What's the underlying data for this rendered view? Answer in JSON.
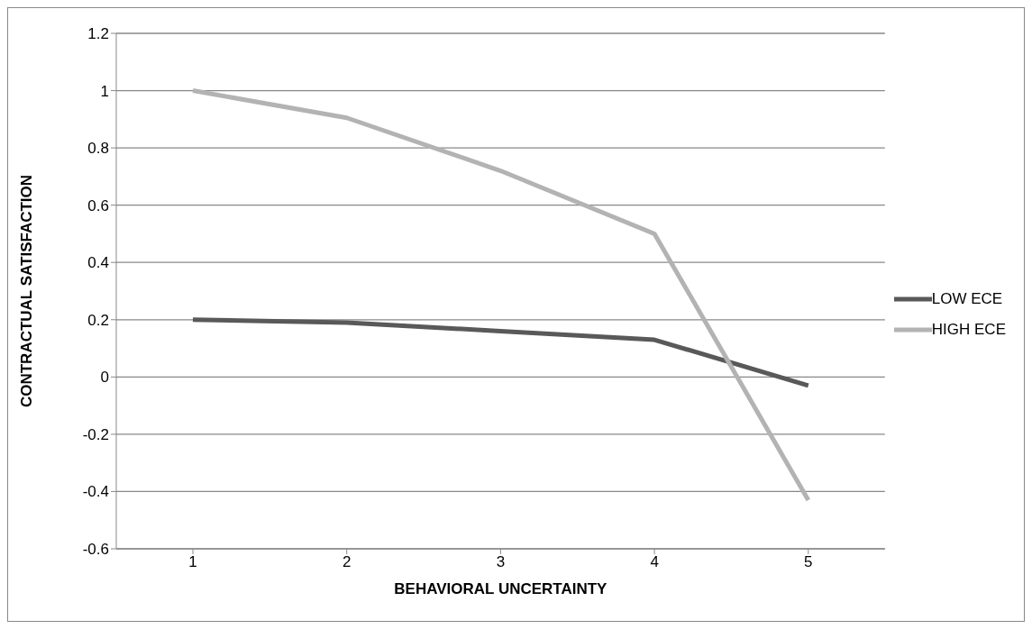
{
  "chart_data": {
    "type": "line",
    "xlabel": "BEHAVIORAL UNCERTAINTY",
    "ylabel": "CONTRACTUAL SATISFACTION",
    "categories": [
      "1",
      "2",
      "3",
      "4",
      "5"
    ],
    "series": [
      {
        "name": "LOW ECE",
        "color": "#595959",
        "values": [
          0.2,
          0.19,
          0.16,
          0.13,
          -0.03
        ]
      },
      {
        "name": "HIGH ECE",
        "color": "#b3b3b3",
        "values": [
          1.0,
          0.905,
          0.72,
          0.5,
          -0.43
        ]
      }
    ],
    "ylim": [
      -0.6,
      1.2
    ],
    "yticks": [
      {
        "value": -0.6,
        "label": "-0.6"
      },
      {
        "value": -0.4,
        "label": "-0.4"
      },
      {
        "value": -0.2,
        "label": "-0.2"
      },
      {
        "value": 0,
        "label": "0"
      },
      {
        "value": 0.2,
        "label": "0.2"
      },
      {
        "value": 0.4,
        "label": "0.4"
      },
      {
        "value": 0.6,
        "label": "0.6"
      },
      {
        "value": 0.8,
        "label": "0.8"
      },
      {
        "value": 1,
        "label": "1"
      },
      {
        "value": 1.2,
        "label": "1.2"
      }
    ],
    "grid": "y",
    "legend": "right",
    "marker": "none",
    "line_style": "solid"
  }
}
